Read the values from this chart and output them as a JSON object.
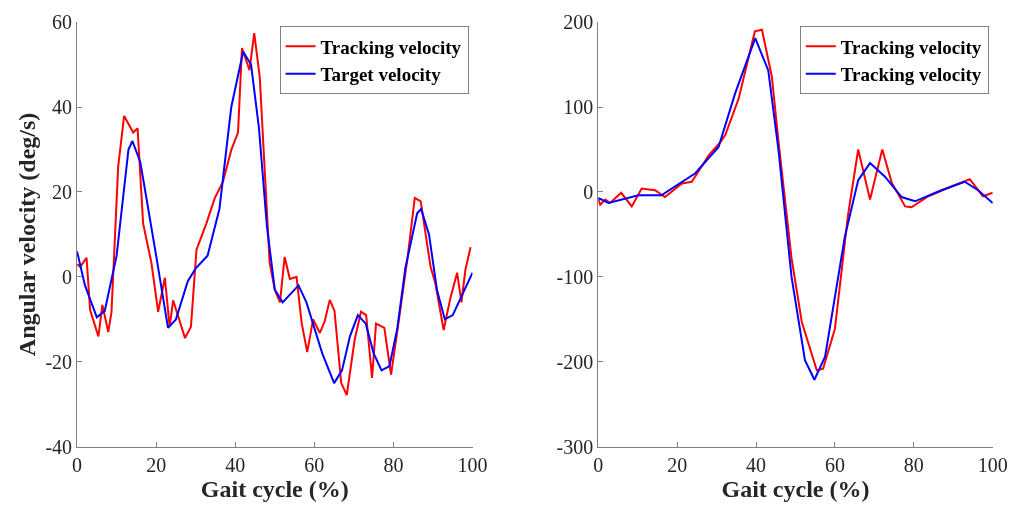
{
  "chart_data": [
    {
      "type": "line",
      "xlabel": "Gait cycle (%)",
      "ylabel": "Angular velocity (deg/s)",
      "xlim": [
        0,
        100
      ],
      "ylim": [
        -40,
        60
      ],
      "xticks": [
        0,
        20,
        40,
        60,
        80,
        100
      ],
      "yticks": [
        -40,
        -20,
        0,
        20,
        40,
        60
      ],
      "legend": "top right",
      "line_style": "solid",
      "marker": "none",
      "series": [
        {
          "name": "Tracking velocity",
          "color": "#ff0000",
          "x": [
            0,
            0.8,
            2.4,
            3.3,
            5.4,
            6.4,
            7.9,
            8.7,
            10.4,
            11.9,
            14.2,
            15.3,
            16.7,
            18.8,
            20.5,
            22.2,
            23.4,
            24.3,
            27.3,
            28.8,
            30.2,
            32.7,
            34.8,
            36.9,
            39,
            40.7,
            41.7,
            43.6,
            44.8,
            46.2,
            48.7,
            50,
            51.3,
            52.5,
            53.8,
            55.5,
            56.8,
            58.2,
            59.7,
            61.4,
            62.6,
            63.9,
            65.1,
            66.8,
            68.2,
            70.2,
            71.8,
            73.1,
            74.6,
            75.6,
            77.7,
            79.4,
            81.1,
            83.6,
            85.4,
            86.9,
            89.4,
            90.6,
            92.7,
            94.4,
            96.1,
            97.2,
            98.2,
            99.5
          ],
          "values": [
            3,
            2.4,
            4.5,
            -7.8,
            -14,
            -6.6,
            -13,
            -8.3,
            26,
            37.9,
            34,
            35,
            12.6,
            3.3,
            -8.2,
            -0.2,
            -11.7,
            -5.5,
            -14.4,
            -11.7,
            6.4,
            12.6,
            18.5,
            22.4,
            29.9,
            34,
            53.9,
            48.7,
            57.4,
            47,
            3.3,
            -3,
            -6,
            4.7,
            -0.5,
            0,
            -10.9,
            -17.7,
            -10,
            -13.2,
            -10.5,
            -5.4,
            -8,
            -25,
            -27.8,
            -14.8,
            -8.2,
            -9,
            -23.8,
            -11,
            -12,
            -23,
            -12,
            4.7,
            18.6,
            17.8,
            2.3,
            -1.5,
            -12.5,
            -5,
            1,
            -6,
            1.7,
            7
          ]
        },
        {
          "name": "Target velocity",
          "color": "#0000ff",
          "x": [
            0,
            2,
            5,
            7,
            10,
            13,
            14,
            16,
            20,
            23,
            25,
            28,
            30,
            33,
            36,
            39,
            42,
            44,
            46,
            48,
            50,
            52,
            54,
            56,
            58,
            62,
            65,
            67,
            69,
            71,
            73,
            75,
            77,
            79,
            81,
            83,
            86,
            87,
            89,
            91,
            93,
            95,
            97,
            100
          ],
          "values": [
            6,
            -2,
            -9.5,
            -8,
            5,
            30,
            32,
            27,
            5,
            -12,
            -10,
            -1,
            2,
            5,
            16,
            40,
            53,
            50,
            35,
            12,
            -3,
            -6,
            -4,
            -2,
            -6,
            -18,
            -25,
            -22,
            -14,
            -9,
            -11,
            -18,
            -22,
            -21,
            -12,
            2,
            15,
            16,
            10,
            -3,
            -10,
            -9,
            -5,
            1
          ]
        }
      ]
    },
    {
      "type": "line",
      "xlabel": "Gait cycle (%)",
      "xlim": [
        0,
        100
      ],
      "ylim": [
        -300,
        200
      ],
      "xticks": [
        0,
        20,
        40,
        60,
        80,
        100
      ],
      "yticks": [
        -300,
        -200,
        -100,
        0,
        100,
        200
      ],
      "legend": "top right",
      "line_style": "solid",
      "marker": "none",
      "series": [
        {
          "name": "Tracking velocity",
          "color": "#ff0000",
          "x": [
            0,
            0.5,
            1.8,
            3,
            5.8,
            8.5,
            11,
            14.4,
            16.9,
            21.2,
            23.7,
            28,
            31,
            32.2,
            35.6,
            39.7,
            41.5,
            44,
            45.7,
            49,
            51.6,
            55.4,
            57,
            60,
            63.3,
            65.9,
            68.9,
            72,
            74.4,
            77.8,
            79.4,
            83.7,
            88.7,
            94.2,
            97.5,
            100
          ],
          "values": [
            -8,
            -15,
            -9,
            -13,
            -1,
            -17,
            4,
            2,
            -6,
            10,
            12,
            43,
            59,
            67,
            110,
            189,
            191,
            136,
            59,
            -78,
            -153,
            -210,
            -208,
            -161,
            -28,
            50,
            -9,
            50,
            11,
            -17,
            -18,
            -5,
            5,
            15,
            -5,
            -1
          ]
        },
        {
          "name": "Tracking velocity",
          "color": "#0000ff",
          "x": [
            0,
            2.6,
            10.2,
            16,
            24.6,
            30.5,
            34.7,
            39.8,
            43.1,
            45.7,
            49,
            52.4,
            54.8,
            57.5,
            62.5,
            65.9,
            68.9,
            72.7,
            76.9,
            80.3,
            87,
            92.9,
            96.3,
            100
          ],
          "values": [
            -7,
            -13,
            -4,
            -4,
            22,
            53,
            116,
            181,
            143,
            49,
            -100,
            -198,
            -221,
            -194,
            -53,
            14,
            34,
            18,
            -6,
            -11,
            2,
            12,
            2,
            -13
          ]
        }
      ]
    }
  ]
}
